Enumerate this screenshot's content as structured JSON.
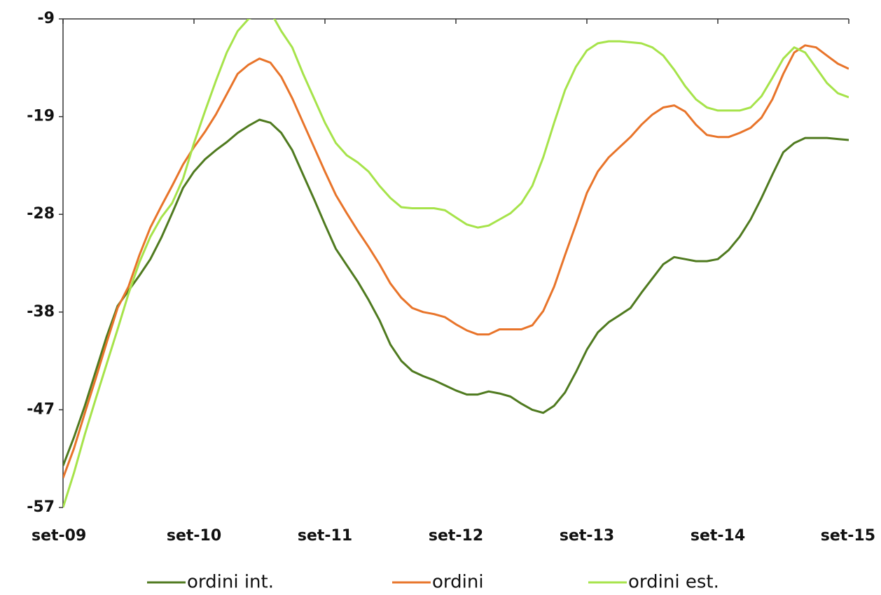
{
  "chart_data": {
    "type": "line",
    "categories": [
      "set-09",
      null,
      null,
      null,
      null,
      null,
      null,
      null,
      null,
      null,
      null,
      null,
      "set-10",
      null,
      null,
      null,
      null,
      null,
      null,
      null,
      null,
      null,
      null,
      null,
      "set-11",
      null,
      null,
      null,
      null,
      null,
      null,
      null,
      null,
      null,
      null,
      null,
      "set-12",
      null,
      null,
      null,
      null,
      null,
      null,
      null,
      null,
      null,
      null,
      null,
      "set-13",
      null,
      null,
      null,
      null,
      null,
      null,
      null,
      null,
      null,
      null,
      null,
      "set-14",
      null,
      null,
      null,
      null,
      null,
      null,
      null,
      null,
      null,
      null,
      null,
      "set-15"
    ],
    "ylim": [
      -57,
      -9
    ],
    "yticks": [
      -57,
      {
        "value": -47.4,
        "label": "-47"
      },
      {
        "value": -37.8,
        "label": "-38"
      },
      {
        "value": -28.2,
        "label": "-28"
      },
      {
        "value": -18.6,
        "label": "-19"
      },
      -9
    ],
    "series": [
      {
        "name": "ordini int.",
        "color": "#4f7a1f",
        "values": [
          -52.9,
          -50.1,
          -47.0,
          -43.6,
          -40.2,
          -37.2,
          -35.7,
          -34.2,
          -32.6,
          -30.5,
          -28.1,
          -25.6,
          -24.0,
          -22.8,
          -21.9,
          -21.1,
          -20.2,
          -19.5,
          -18.9,
          -19.2,
          -20.2,
          -21.9,
          -24.3,
          -26.7,
          -29.2,
          -31.6,
          -33.2,
          -34.8,
          -36.6,
          -38.6,
          -41.0,
          -42.6,
          -43.6,
          -44.1,
          -44.5,
          -45.0,
          -45.5,
          -45.9,
          -45.9,
          -45.6,
          -45.8,
          -46.1,
          -46.8,
          -47.4,
          -47.7,
          -47.0,
          -45.7,
          -43.7,
          -41.5,
          -39.8,
          -38.8,
          -38.1,
          -37.4,
          -35.9,
          -34.5,
          -33.1,
          -32.4,
          -32.6,
          -32.8,
          -32.8,
          -32.6,
          -31.7,
          -30.4,
          -28.7,
          -26.6,
          -24.3,
          -22.1,
          -21.2,
          -20.7,
          -20.7,
          -20.7,
          -20.8,
          -20.9
        ]
      },
      {
        "name": "ordini",
        "color": "#e8742a",
        "values": [
          -54.1,
          -51.2,
          -47.7,
          -44.3,
          -40.8,
          -37.4,
          -35.3,
          -32.2,
          -29.5,
          -27.4,
          -25.4,
          -23.3,
          -21.6,
          -20.1,
          -18.4,
          -16.4,
          -14.4,
          -13.5,
          -12.9,
          -13.3,
          -14.7,
          -16.8,
          -19.2,
          -21.6,
          -24.0,
          -26.3,
          -28.1,
          -29.8,
          -31.4,
          -33.1,
          -35.0,
          -36.4,
          -37.4,
          -37.8,
          -38.0,
          -38.3,
          -39.0,
          -39.6,
          -40.0,
          -40.0,
          -39.5,
          -39.5,
          -39.5,
          -39.1,
          -37.7,
          -35.3,
          -32.2,
          -29.2,
          -26.1,
          -24.0,
          -22.6,
          -21.6,
          -20.6,
          -19.4,
          -18.4,
          -17.7,
          -17.5,
          -18.1,
          -19.4,
          -20.4,
          -20.6,
          -20.6,
          -20.2,
          -19.7,
          -18.7,
          -16.9,
          -14.4,
          -12.3,
          -11.6,
          -11.8,
          -12.6,
          -13.4,
          -13.9
        ]
      },
      {
        "name": "ordini est.",
        "color": "#a6e34a",
        "values": [
          -57.0,
          -53.6,
          -49.8,
          -46.3,
          -42.9,
          -39.5,
          -36.0,
          -32.9,
          -30.4,
          -28.5,
          -27.1,
          -24.7,
          -21.2,
          -18.1,
          -15.1,
          -12.3,
          -10.2,
          -9.0,
          -8.6,
          -8.3,
          -10.2,
          -11.8,
          -14.4,
          -16.8,
          -19.2,
          -21.2,
          -22.4,
          -23.1,
          -24.0,
          -25.4,
          -26.6,
          -27.5,
          -27.6,
          -27.6,
          -27.6,
          -27.8,
          -28.5,
          -29.2,
          -29.5,
          -29.3,
          -28.7,
          -28.1,
          -27.1,
          -25.4,
          -22.6,
          -19.2,
          -16.0,
          -13.7,
          -12.1,
          -11.4,
          -11.2,
          -11.2,
          -11.3,
          -11.4,
          -11.8,
          -12.6,
          -14.0,
          -15.6,
          -16.9,
          -17.7,
          -18.0,
          -18.0,
          -18.0,
          -17.7,
          -16.6,
          -14.8,
          -12.9,
          -11.8,
          -12.3,
          -13.8,
          -15.3,
          -16.3,
          -16.7
        ]
      }
    ]
  }
}
